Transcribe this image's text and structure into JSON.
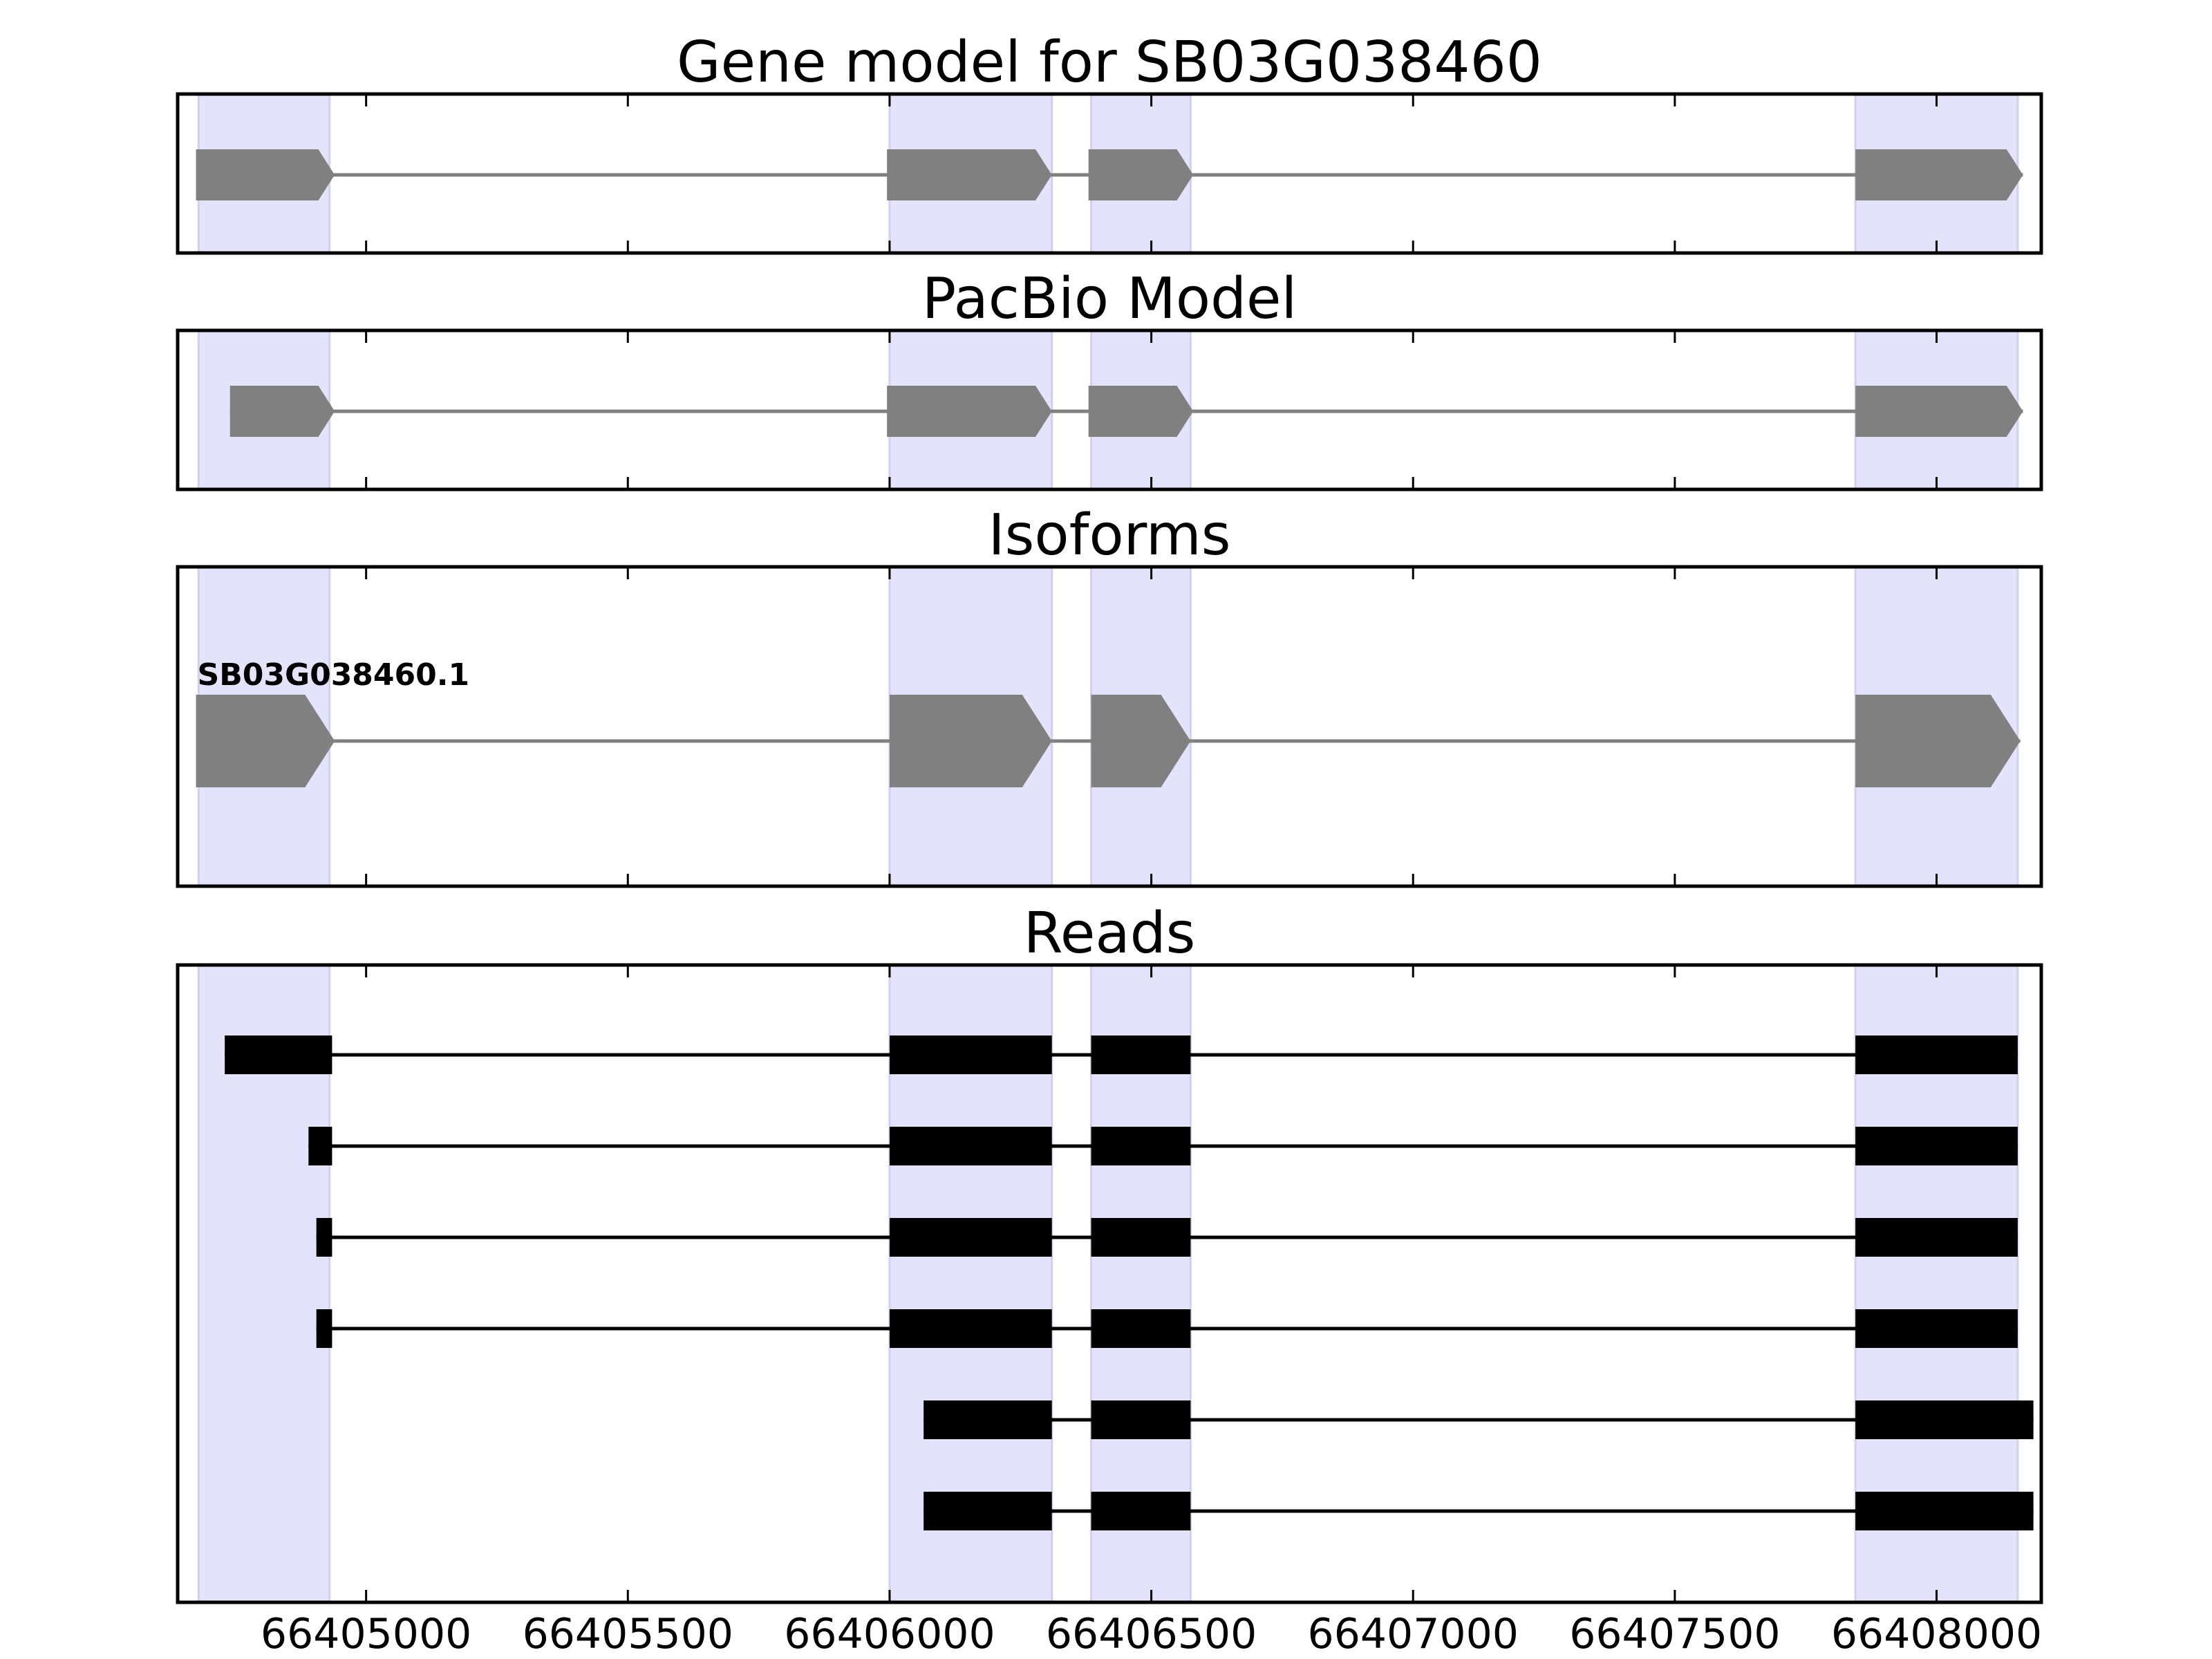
{
  "chart_data": {
    "type": "gene-structure",
    "x_axis": {
      "xlim": [
        66404640,
        66408200
      ],
      "ticks": [
        66405000,
        66405500,
        66406000,
        66406500,
        66407000,
        66407500,
        66408000
      ],
      "tick_labels": [
        "66405000",
        "66405500",
        "66406000",
        "66406500",
        "66407000",
        "66407500",
        "66408000"
      ]
    },
    "highlight_regions": [
      [
        66404680,
        66404930
      ],
      [
        66406000,
        66406310
      ],
      [
        66406385,
        66406575
      ],
      [
        66407845,
        66408155
      ]
    ],
    "panels": [
      {
        "title": "Gene model for SB03G038460",
        "kind": "model",
        "strand": "+",
        "color": "#808080",
        "transcripts": [
          {
            "label": "",
            "exons": [
              [
                66404675,
                66404940
              ],
              [
                66405995,
                66406310
              ],
              [
                66406380,
                66406580
              ],
              [
                66407845,
                66408165
              ]
            ]
          }
        ]
      },
      {
        "title": "PacBio Model",
        "kind": "model",
        "strand": "+",
        "color": "#808080",
        "transcripts": [
          {
            "label": "",
            "exons": [
              [
                66404740,
                66404940
              ],
              [
                66405995,
                66406310
              ],
              [
                66406380,
                66406580
              ],
              [
                66407845,
                66408165
              ]
            ]
          }
        ]
      },
      {
        "title": "Isoforms",
        "kind": "model",
        "strand": "+",
        "color": "#808080",
        "transcripts": [
          {
            "label": "SB03G038460.1",
            "exons": [
              [
                66404675,
                66404940
              ],
              [
                66406000,
                66406310
              ],
              [
                66406385,
                66406575
              ],
              [
                66407845,
                66408160
              ]
            ]
          }
        ]
      },
      {
        "title": "Reads",
        "kind": "reads",
        "color": "#000000",
        "transcripts": [
          {
            "label": "",
            "exons": [
              [
                66404730,
                66404935
              ],
              [
                66406000,
                66406310
              ],
              [
                66406385,
                66406575
              ],
              [
                66407845,
                66408155
              ]
            ]
          },
          {
            "label": "",
            "exons": [
              [
                66404890,
                66404935
              ],
              [
                66406000,
                66406310
              ],
              [
                66406385,
                66406575
              ],
              [
                66407845,
                66408155
              ]
            ]
          },
          {
            "label": "",
            "exons": [
              [
                66404905,
                66404935
              ],
              [
                66406000,
                66406310
              ],
              [
                66406385,
                66406575
              ],
              [
                66407845,
                66408155
              ]
            ]
          },
          {
            "label": "",
            "exons": [
              [
                66404905,
                66404935
              ],
              [
                66406000,
                66406310
              ],
              [
                66406385,
                66406575
              ],
              [
                66407845,
                66408155
              ]
            ]
          },
          {
            "label": "",
            "exons": [
              [
                66406065,
                66406310
              ],
              [
                66406385,
                66406575
              ],
              [
                66407845,
                66408185
              ]
            ]
          },
          {
            "label": "",
            "exons": [
              [
                66406065,
                66406310
              ],
              [
                66406385,
                66406575
              ],
              [
                66407845,
                66408185
              ]
            ]
          }
        ]
      }
    ],
    "highlight_color": "#e3e3fc",
    "highlight_edge_color": "#d0d0f0"
  }
}
